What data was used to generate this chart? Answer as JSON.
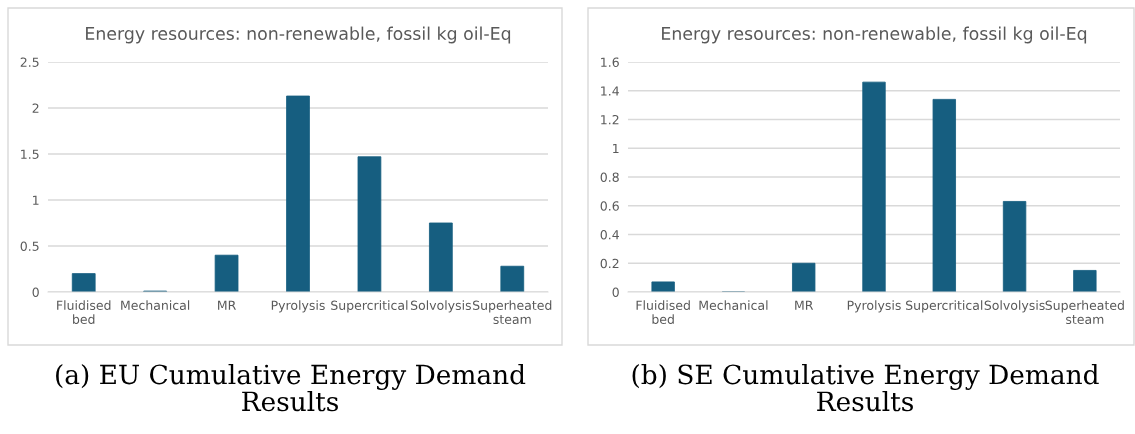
{
  "chart_data": [
    {
      "type": "bar",
      "title": "Energy resources: non-renewable, fossil kg oil-Eq",
      "categories": [
        "Fluidised bed",
        "Mechanical",
        "MR",
        "Pyrolysis",
        "Supercritical",
        "Solvolysis",
        "Superheated steam"
      ],
      "values": [
        0.2,
        0.01,
        0.4,
        2.13,
        1.47,
        0.75,
        0.28
      ],
      "color": "#165e80",
      "ylim": [
        0,
        2.5
      ],
      "yticks": [
        0,
        0.5,
        1,
        1.5,
        2,
        2.5
      ],
      "grid": "y",
      "legend": false,
      "annotations": [
        "(a) EU Cumulative Energy Demand Results"
      ]
    },
    {
      "type": "bar",
      "title": "Energy resources: non-renewable, fossil kg oil-Eq",
      "categories": [
        "Fluidised bed",
        "Mechanical",
        "MR",
        "Pyrolysis",
        "Supercritical",
        "Solvolysis",
        "Superheated steam"
      ],
      "values": [
        0.07,
        0,
        0.2,
        1.46,
        1.34,
        0.63,
        0.15
      ],
      "color": "#165e80",
      "ylim": [
        0,
        1.6
      ],
      "yticks": [
        0,
        0.2,
        0.4,
        0.6,
        0.8,
        1,
        1.2,
        1.4,
        1.6
      ],
      "grid": "y",
      "legend": false,
      "annotations": [
        "(b) SE Cumulative Energy Demand Results"
      ]
    }
  ]
}
